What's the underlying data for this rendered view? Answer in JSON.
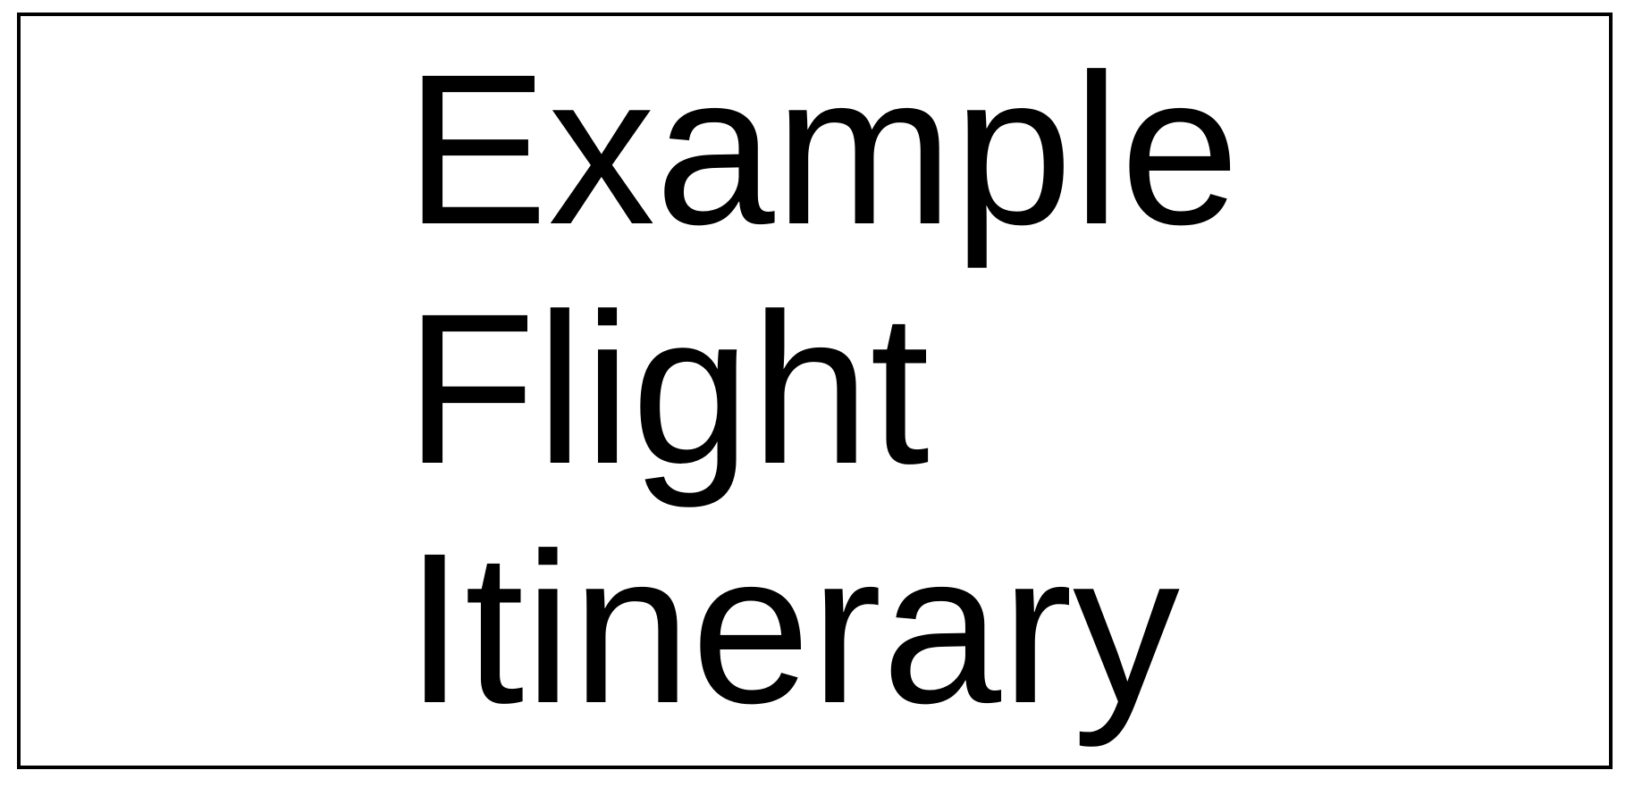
{
  "document": {
    "title_lines": [
      "Example",
      "Flight",
      "Itinerary"
    ]
  },
  "colors": {
    "text": "#000000",
    "border": "#000000",
    "background": "#ffffff"
  }
}
